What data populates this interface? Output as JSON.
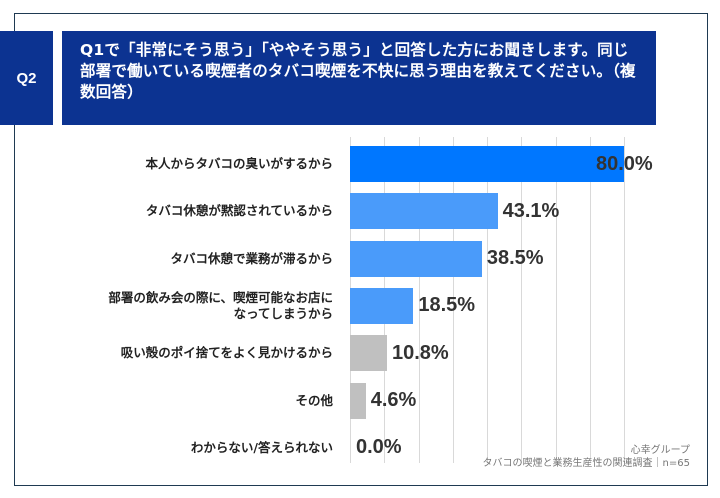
{
  "header": {
    "badge": "Q2",
    "question": "Q1で「非常にそう思う」「ややそう思う」と回答した方にお聞きします。同じ部署で働いている喫煙者のタバコ喫煙を不快に思う理由を教えてください。（複数回答）"
  },
  "colors": {
    "header_bg": "#0c3391",
    "bar_top": "#0077ff",
    "bar_blue": "#4a9bfa",
    "bar_gray": "#c0c0c0",
    "frame": "#1f3a52"
  },
  "source": {
    "line1": "心幸グループ",
    "line2": "タバコの喫煙と業務生産性の関連調査｜n=65"
  },
  "chart_data": {
    "type": "bar",
    "orientation": "horizontal",
    "title": "同じ部署で働いている喫煙者のタバコ喫煙を不快に思う理由（複数回答）",
    "categories": [
      "本人からタバコの臭いがするから",
      "タバコ休憩が黙認されているから",
      "タバコ休憩で業務が滞るから",
      "部署の飲み会の際に、喫煙可能なお店になってしまうから",
      "吸い殻のポイ捨てをよく見かけるから",
      "その他",
      "わからない/答えられない"
    ],
    "values": [
      80.0,
      43.1,
      38.5,
      18.5,
      10.8,
      4.6,
      0.0
    ],
    "value_labels": [
      "80.0%",
      "43.1%",
      "38.5%",
      "18.5%",
      "10.8%",
      "4.6%",
      "0.0%"
    ],
    "label_lines": [
      [
        "本人からタバコの臭いがするから"
      ],
      [
        "タバコ休憩が黙認されているから"
      ],
      [
        "タバコ休憩で業務が滞るから"
      ],
      [
        "部署の飲み会の際に、喫煙可能なお店に",
        "なってしまうから"
      ],
      [
        "吸い殻のポイ捨てをよく見かけるから"
      ],
      [
        "その他"
      ],
      [
        "わからない/答えられない"
      ]
    ],
    "xlabel": "",
    "ylabel": "",
    "xlim": [
      0,
      80
    ],
    "grid": true,
    "grid_step": 10,
    "unit": "%",
    "n": 65
  }
}
